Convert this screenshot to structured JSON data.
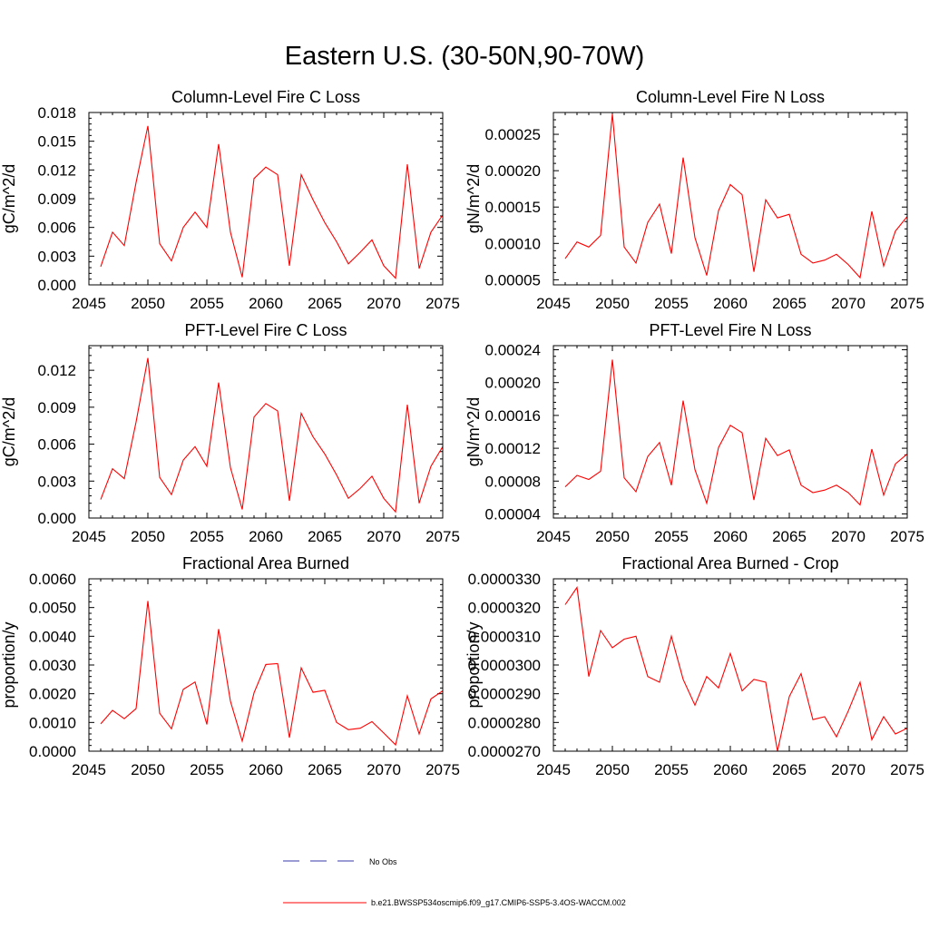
{
  "title": "Eastern U.S. (30-50N,90-70W)",
  "line_color": "#ff0000",
  "obs_color": "#3a3aa8",
  "legend": {
    "obs_label": "No Obs",
    "model_label": "b.e21.BWSSP534oscmip6.f09_g17.CMIP6-SSP5-3.4OS-WACCM.002"
  },
  "chart_data": [
    {
      "type": "line",
      "title": "Column-Level Fire C Loss",
      "ylabel": "gC/m^2/d",
      "xlim": [
        2045,
        2075
      ],
      "ylim": [
        0,
        0.018
      ],
      "xticks": [
        "2045",
        "2050",
        "2055",
        "2060",
        "2065",
        "2070",
        "2075"
      ],
      "yticks": [
        "0.000",
        "0.003",
        "0.006",
        "0.009",
        "0.012",
        "0.015",
        "0.018"
      ],
      "x": [
        2046,
        2047,
        2048,
        2049,
        2050,
        2051,
        2052,
        2053,
        2054,
        2055,
        2056,
        2057,
        2058,
        2059,
        2060,
        2061,
        2062,
        2063,
        2064,
        2065,
        2066,
        2067,
        2068,
        2069,
        2070,
        2071,
        2072,
        2073,
        2074,
        2075
      ],
      "values": [
        0.0019,
        0.0055,
        0.0041,
        0.0107,
        0.0166,
        0.0043,
        0.0025,
        0.006,
        0.0076,
        0.006,
        0.0147,
        0.0055,
        0.0008,
        0.0111,
        0.0123,
        0.0115,
        0.002,
        0.0115,
        0.0089,
        0.0065,
        0.0045,
        0.0022,
        0.0034,
        0.0047,
        0.002,
        0.0007,
        0.0126,
        0.0017,
        0.0055,
        0.0073
      ]
    },
    {
      "type": "line",
      "title": "Column-Level Fire N Loss",
      "ylabel": "gN/m^2/d",
      "xlim": [
        2045,
        2075
      ],
      "ylim": [
        4.3e-05,
        0.00028
      ],
      "xticks": [
        "2045",
        "2050",
        "2055",
        "2060",
        "2065",
        "2070",
        "2075"
      ],
      "yticks": [
        "0.00005",
        "0.00010",
        "0.00015",
        "0.00020",
        "0.00025"
      ],
      "x": [
        2046,
        2047,
        2048,
        2049,
        2050,
        2051,
        2052,
        2053,
        2054,
        2055,
        2056,
        2057,
        2058,
        2059,
        2060,
        2061,
        2062,
        2063,
        2064,
        2065,
        2066,
        2067,
        2068,
        2069,
        2070,
        2071,
        2072,
        2073,
        2074,
        2075
      ],
      "values": [
        7.9e-05,
        0.000102,
        9.5e-05,
        0.000111,
        0.000278,
        9.5e-05,
        7.3e-05,
        0.000129,
        0.000154,
        8.6e-05,
        0.000218,
        0.000108,
        5.6e-05,
        0.000145,
        0.000181,
        0.000167,
        6.1e-05,
        0.00016,
        0.000135,
        0.00014,
        8.5e-05,
        7.3e-05,
        7.7e-05,
        8.5e-05,
        7.1e-05,
        5.3e-05,
        0.000144,
        6.9e-05,
        0.000117,
        0.000137
      ]
    },
    {
      "type": "line",
      "title": "PFT-Level Fire C Loss",
      "ylabel": "gC/m^2/d",
      "xlim": [
        2045,
        2075
      ],
      "ylim": [
        0,
        0.014
      ],
      "xticks": [
        "2045",
        "2050",
        "2055",
        "2060",
        "2065",
        "2070",
        "2075"
      ],
      "yticks": [
        "0.000",
        "0.003",
        "0.006",
        "0.009",
        "0.012"
      ],
      "x": [
        2046,
        2047,
        2048,
        2049,
        2050,
        2051,
        2052,
        2053,
        2054,
        2055,
        2056,
        2057,
        2058,
        2059,
        2060,
        2061,
        2062,
        2063,
        2064,
        2065,
        2066,
        2067,
        2068,
        2069,
        2070,
        2071,
        2072,
        2073,
        2074,
        2075
      ],
      "values": [
        0.0015,
        0.004,
        0.0032,
        0.0078,
        0.013,
        0.0033,
        0.0019,
        0.0047,
        0.0058,
        0.0042,
        0.011,
        0.0041,
        0.0007,
        0.0082,
        0.0093,
        0.0087,
        0.0014,
        0.0085,
        0.0066,
        0.0052,
        0.0035,
        0.0016,
        0.0024,
        0.0034,
        0.0016,
        0.0005,
        0.0092,
        0.0012,
        0.0042,
        0.0058
      ]
    },
    {
      "type": "line",
      "title": "PFT-Level Fire N Loss",
      "ylabel": "gN/m^2/d",
      "xlim": [
        2045,
        2075
      ],
      "ylim": [
        3.5e-05,
        0.000245
      ],
      "xticks": [
        "2045",
        "2050",
        "2055",
        "2060",
        "2065",
        "2070",
        "2075"
      ],
      "yticks": [
        "0.00004",
        "0.00008",
        "0.00012",
        "0.00016",
        "0.00020",
        "0.00024"
      ],
      "x": [
        2046,
        2047,
        2048,
        2049,
        2050,
        2051,
        2052,
        2053,
        2054,
        2055,
        2056,
        2057,
        2058,
        2059,
        2060,
        2061,
        2062,
        2063,
        2064,
        2065,
        2066,
        2067,
        2068,
        2069,
        2070,
        2071,
        2072,
        2073,
        2074,
        2075
      ],
      "values": [
        7.3e-05,
        8.7e-05,
        8.2e-05,
        9.2e-05,
        0.000228,
        8.4e-05,
        6.7e-05,
        0.00011,
        0.000127,
        7.5e-05,
        0.000178,
        9.4e-05,
        5.3e-05,
        0.000121,
        0.000148,
        0.000139,
        5.7e-05,
        0.000132,
        0.000111,
        0.000118,
        7.5e-05,
        6.6e-05,
        6.9e-05,
        7.5e-05,
        6.6e-05,
        5.1e-05,
        0.000119,
        6.3e-05,
        0.000101,
        0.000113
      ]
    },
    {
      "type": "line",
      "title": "Fractional Area Burned",
      "ylabel": "proportion/y",
      "xlim": [
        2045,
        2075
      ],
      "ylim": [
        0,
        0.006
      ],
      "xticks": [
        "2045",
        "2050",
        "2055",
        "2060",
        "2065",
        "2070",
        "2075"
      ],
      "yticks": [
        "0.0000",
        "0.0010",
        "0.0020",
        "0.0030",
        "0.0040",
        "0.0050",
        "0.0060"
      ],
      "x": [
        2046,
        2047,
        2048,
        2049,
        2050,
        2051,
        2052,
        2053,
        2054,
        2055,
        2056,
        2057,
        2058,
        2059,
        2060,
        2061,
        2062,
        2063,
        2064,
        2065,
        2066,
        2067,
        2068,
        2069,
        2070,
        2071,
        2072,
        2073,
        2074,
        2075
      ],
      "values": [
        0.00095,
        0.00142,
        0.00113,
        0.00148,
        0.00523,
        0.00132,
        0.00078,
        0.00215,
        0.00241,
        0.00093,
        0.00425,
        0.00174,
        0.00035,
        0.00203,
        0.00302,
        0.00305,
        0.00047,
        0.0029,
        0.00205,
        0.00212,
        0.001,
        0.00075,
        0.0008,
        0.00103,
        0.00063,
        0.00022,
        0.00193,
        0.0006,
        0.00182,
        0.0021
      ]
    },
    {
      "type": "line",
      "title": "Fractional Area Burned - Crop",
      "ylabel": "proportion/y",
      "xlim": [
        2045,
        2075
      ],
      "ylim": [
        2.7e-05,
        3.3e-05
      ],
      "xticks": [
        "2045",
        "2050",
        "2055",
        "2060",
        "2065",
        "2070",
        "2075"
      ],
      "yticks": [
        "0.0000270",
        "0.0000280",
        "0.0000290",
        "0.0000300",
        "0.0000310",
        "0.0000320",
        "0.0000330"
      ],
      "x": [
        2046,
        2047,
        2048,
        2049,
        2050,
        2051,
        2052,
        2053,
        2054,
        2055,
        2056,
        2057,
        2058,
        2059,
        2060,
        2061,
        2062,
        2063,
        2064,
        2065,
        2066,
        2067,
        2068,
        2069,
        2070,
        2071,
        2072,
        2073,
        2074,
        2075
      ],
      "values": [
        3.21e-05,
        3.27e-05,
        2.96e-05,
        3.12e-05,
        3.06e-05,
        3.09e-05,
        3.1e-05,
        2.96e-05,
        2.94e-05,
        3.1e-05,
        2.95e-05,
        2.86e-05,
        2.96e-05,
        2.92e-05,
        3.04e-05,
        2.91e-05,
        2.95e-05,
        2.94e-05,
        2.7e-05,
        2.89e-05,
        2.97e-05,
        2.81e-05,
        2.82e-05,
        2.75e-05,
        2.84e-05,
        2.94e-05,
        2.74e-05,
        2.82e-05,
        2.76e-05,
        2.78e-05
      ]
    }
  ]
}
